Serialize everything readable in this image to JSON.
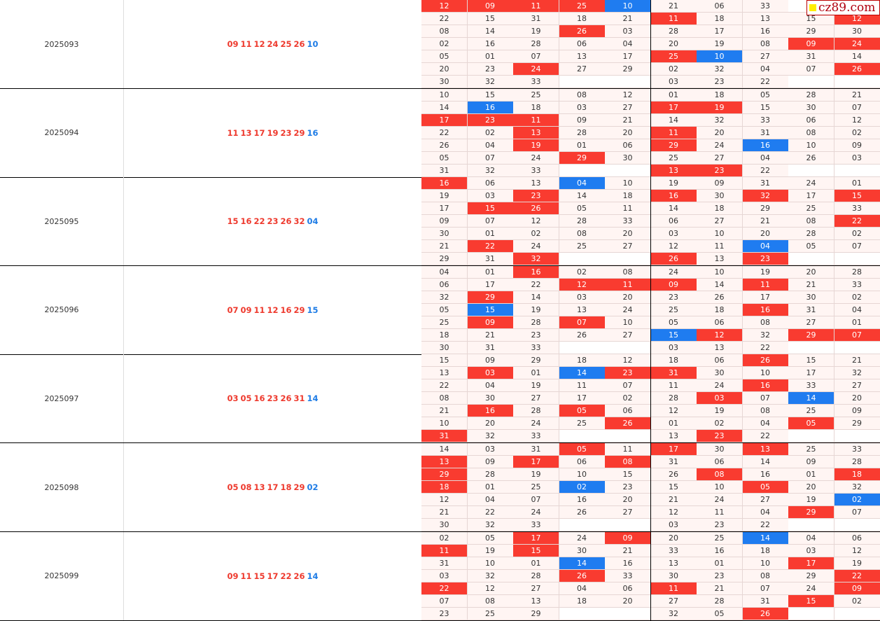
{
  "watermark": "cz89.com",
  "colors": {
    "red": "#f93b30",
    "blue": "#1f7cf0"
  },
  "blocks": [
    {
      "period": "2025093",
      "reds": [
        "09",
        "11",
        "12",
        "24",
        "25",
        "26"
      ],
      "blue": "10",
      "grid": [
        [
          "12r",
          "09r",
          "11r",
          "25r",
          "10b",
          "21",
          "06",
          "33",
          "",
          ""
        ],
        [
          "22",
          "15",
          "31",
          "18",
          "21",
          "11r",
          "18",
          "13",
          "15",
          "12r"
        ],
        [
          "08",
          "14",
          "19",
          "26r",
          "03",
          "28",
          "17",
          "16",
          "29",
          "30"
        ],
        [
          "02",
          "16",
          "28",
          "06",
          "04",
          "20",
          "19",
          "08",
          "09r",
          "24r"
        ],
        [
          "05",
          "01",
          "07",
          "13",
          "17",
          "25r",
          "10b",
          "27",
          "31",
          "14"
        ],
        [
          "20",
          "23",
          "24r",
          "27",
          "29",
          "02",
          "32",
          "04",
          "07",
          "26r"
        ],
        [
          "30",
          "32",
          "33",
          "",
          "",
          "03",
          "23",
          "22",
          "",
          ""
        ]
      ]
    },
    {
      "period": "2025094",
      "reds": [
        "11",
        "13",
        "17",
        "19",
        "23",
        "29"
      ],
      "blue": "16",
      "grid": [
        [
          "10",
          "15",
          "25",
          "08",
          "12",
          "01",
          "18",
          "05",
          "28",
          "21"
        ],
        [
          "14",
          "16b",
          "18",
          "03",
          "27",
          "17r",
          "19r",
          "15",
          "30",
          "07"
        ],
        [
          "17r",
          "23r",
          "11r",
          "09",
          "21",
          "14",
          "32",
          "33",
          "06",
          "12"
        ],
        [
          "22",
          "02",
          "13r",
          "28",
          "20",
          "11r",
          "20",
          "31",
          "08",
          "02"
        ],
        [
          "26",
          "04",
          "19r",
          "01",
          "06",
          "29r",
          "24",
          "16b",
          "10",
          "09"
        ],
        [
          "05",
          "07",
          "24",
          "29r",
          "30",
          "25",
          "27",
          "04",
          "26",
          "03"
        ],
        [
          "31",
          "32",
          "33",
          "",
          "",
          "13r",
          "23r",
          "22",
          "",
          ""
        ]
      ]
    },
    {
      "period": "2025095",
      "reds": [
        "15",
        "16",
        "22",
        "23",
        "26",
        "32"
      ],
      "blue": "04",
      "grid": [
        [
          "16r",
          "06",
          "13",
          "04b",
          "10",
          "19",
          "09",
          "31",
          "24",
          "01"
        ],
        [
          "19",
          "03",
          "23r",
          "14",
          "18",
          "16r",
          "30",
          "32r",
          "17",
          "15r"
        ],
        [
          "17",
          "15r",
          "26r",
          "05",
          "11",
          "14",
          "18",
          "29",
          "25",
          "33"
        ],
        [
          "09",
          "07",
          "12",
          "28",
          "33",
          "06",
          "27",
          "21",
          "08",
          "22r"
        ],
        [
          "30",
          "01",
          "02",
          "08",
          "20",
          "03",
          "10",
          "20",
          "28",
          "02"
        ],
        [
          "21",
          "22r",
          "24",
          "25",
          "27",
          "12",
          "11",
          "04b",
          "05",
          "07"
        ],
        [
          "29",
          "31",
          "32r",
          "",
          "",
          "26r",
          "13",
          "23r",
          "",
          ""
        ]
      ]
    },
    {
      "period": "2025096",
      "reds": [
        "07",
        "09",
        "11",
        "12",
        "16",
        "29"
      ],
      "blue": "15",
      "grid": [
        [
          "04",
          "01",
          "16r",
          "02",
          "08",
          "24",
          "10",
          "19",
          "20",
          "28"
        ],
        [
          "06",
          "17",
          "22",
          "12r",
          "11r",
          "09r",
          "14",
          "11r",
          "21",
          "33"
        ],
        [
          "32",
          "29r",
          "14",
          "03",
          "20",
          "23",
          "26",
          "17",
          "30",
          "02"
        ],
        [
          "05",
          "15b",
          "19",
          "13",
          "24",
          "25",
          "18",
          "16r",
          "31",
          "04"
        ],
        [
          "25",
          "09r",
          "28",
          "07r",
          "10",
          "05",
          "06",
          "08",
          "27",
          "01"
        ],
        [
          "18",
          "21",
          "23",
          "26",
          "27",
          "15b",
          "12r",
          "32",
          "29r",
          "07r"
        ],
        [
          "30",
          "31",
          "33",
          "",
          "",
          "03",
          "13",
          "22",
          "",
          ""
        ]
      ]
    },
    {
      "period": "2025097",
      "reds": [
        "03",
        "05",
        "16",
        "23",
        "26",
        "31"
      ],
      "blue": "14",
      "grid": [
        [
          "15",
          "09",
          "29",
          "18",
          "12",
          "18",
          "06",
          "26r",
          "15",
          "21"
        ],
        [
          "13",
          "03r",
          "01",
          "14b",
          "23r",
          "31r",
          "30",
          "10",
          "17",
          "32"
        ],
        [
          "22",
          "04",
          "19",
          "11",
          "07",
          "11",
          "24",
          "16r",
          "33",
          "27"
        ],
        [
          "08",
          "30",
          "27",
          "17",
          "02",
          "28",
          "03r",
          "07",
          "14b",
          "20"
        ],
        [
          "21",
          "16r",
          "28",
          "05r",
          "06",
          "12",
          "19",
          "08",
          "25",
          "09"
        ],
        [
          "10",
          "20",
          "24",
          "25",
          "26r",
          "01",
          "02",
          "04",
          "05r",
          "29"
        ],
        [
          "31r",
          "32",
          "33",
          "",
          "",
          "13",
          "23r",
          "22",
          "",
          ""
        ]
      ]
    },
    {
      "period": "2025098",
      "reds": [
        "05",
        "08",
        "13",
        "17",
        "18",
        "29"
      ],
      "blue": "02",
      "grid": [
        [
          "14",
          "03",
          "31",
          "05r",
          "11",
          "17r",
          "30",
          "13r",
          "25",
          "33"
        ],
        [
          "13r",
          "09",
          "17r",
          "06",
          "08r",
          "31",
          "06",
          "14",
          "09",
          "28"
        ],
        [
          "29r",
          "28",
          "19",
          "10",
          "15",
          "26",
          "08r",
          "16",
          "01",
          "18r"
        ],
        [
          "18r",
          "01",
          "25",
          "02b",
          "23",
          "15",
          "10",
          "05r",
          "20",
          "32"
        ],
        [
          "12",
          "04",
          "07",
          "16",
          "20",
          "21",
          "24",
          "27",
          "19",
          "02b"
        ],
        [
          "21",
          "22",
          "24",
          "26",
          "27",
          "12",
          "11",
          "04",
          "29r",
          "07"
        ],
        [
          "30",
          "32",
          "33",
          "",
          "",
          "03",
          "23",
          "22",
          "",
          ""
        ]
      ]
    },
    {
      "period": "2025099",
      "reds": [
        "09",
        "11",
        "15",
        "17",
        "22",
        "26"
      ],
      "blue": "14",
      "grid": [
        [
          "02",
          "05",
          "17r",
          "24",
          "09r",
          "20",
          "25",
          "14b",
          "04",
          "06"
        ],
        [
          "11r",
          "19",
          "15r",
          "30",
          "21",
          "33",
          "16",
          "18",
          "03",
          "12"
        ],
        [
          "31",
          "10",
          "01",
          "14b",
          "16",
          "13",
          "01",
          "10",
          "17r",
          "19"
        ],
        [
          "03",
          "32",
          "28",
          "26r",
          "33",
          "30",
          "23",
          "08",
          "29",
          "22r"
        ],
        [
          "22r",
          "12",
          "27",
          "04",
          "06",
          "11r",
          "21",
          "07",
          "24",
          "09r"
        ],
        [
          "07",
          "08",
          "13",
          "18",
          "20",
          "27",
          "28",
          "31",
          "15r",
          "02"
        ],
        [
          "23",
          "25",
          "29",
          "",
          "",
          "32",
          "05",
          "26r",
          "",
          ""
        ]
      ]
    }
  ]
}
